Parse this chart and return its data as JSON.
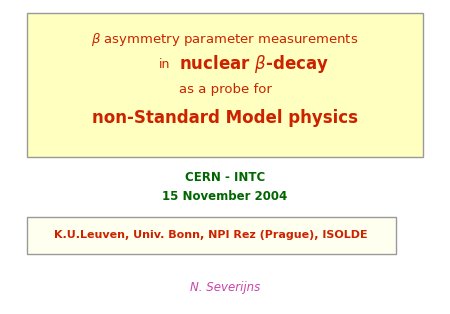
{
  "bg_color": "#ffffff",
  "box1_bg": "#ffffc0",
  "box1_border": "#999999",
  "box2_bg": "#fffff0",
  "box2_border": "#999999",
  "title_color": "#cc2200",
  "cern_color": "#006600",
  "author_color": "#cc44aa",
  "affiliations_color": "#cc2200",
  "cern_line1": "CERN - INTC",
  "cern_line2": "15 November 2004",
  "affiliations": "K.U.Leuven, Univ. Bonn, NPI Rez (Prague), ISOLDE",
  "author": "N. Severijns"
}
